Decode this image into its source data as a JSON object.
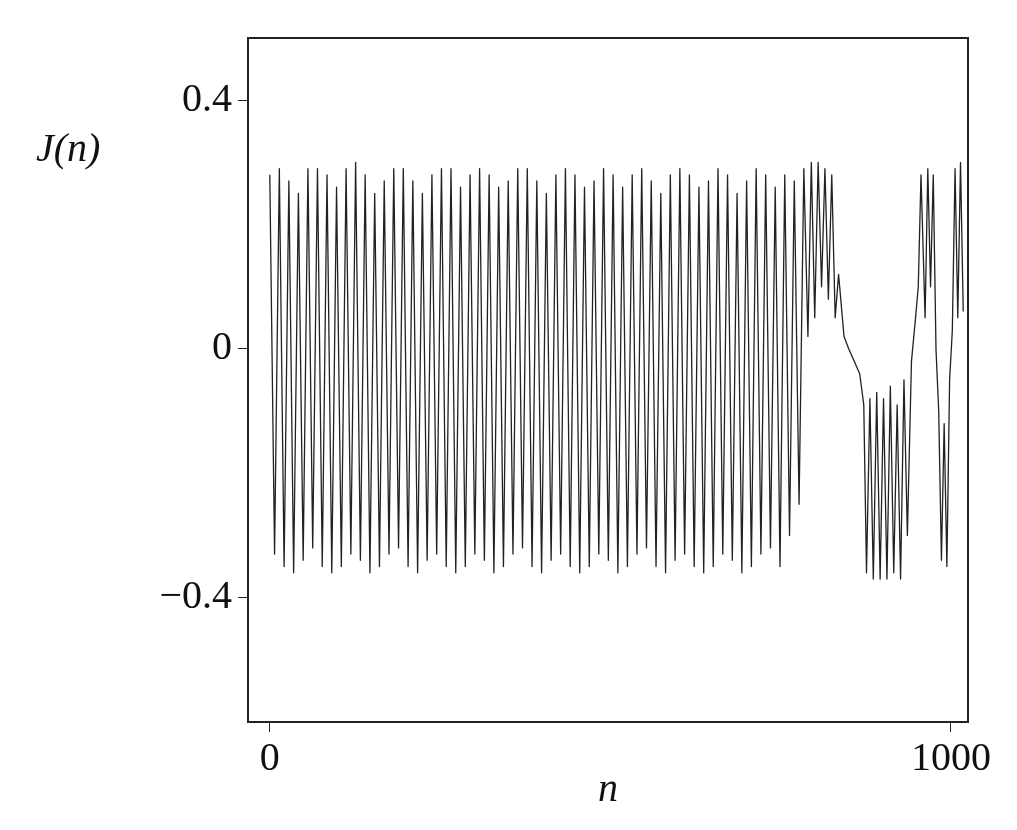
{
  "chart_data": {
    "type": "line",
    "xlabel": "n",
    "ylabel": "J(n)",
    "xlim": [
      -32,
      1025
    ],
    "ylim": [
      -0.6,
      0.5
    ],
    "xticks": [
      0,
      1000
    ],
    "yticks": [
      -0.4,
      0,
      0.4
    ],
    "grid": false,
    "legend": false,
    "marker": "none",
    "line_style": "solid",
    "series": [
      {
        "color": "#222222",
        "x": [
          0,
          7,
          14,
          21,
          28,
          35,
          42,
          49,
          56,
          63,
          70,
          77,
          84,
          91,
          98,
          105,
          112,
          119,
          126,
          133,
          140,
          147,
          154,
          161,
          168,
          175,
          182,
          189,
          196,
          203,
          210,
          217,
          224,
          231,
          238,
          245,
          252,
          259,
          266,
          273,
          280,
          287,
          294,
          301,
          308,
          315,
          322,
          329,
          336,
          343,
          350,
          357,
          364,
          371,
          378,
          385,
          392,
          399,
          406,
          413,
          420,
          427,
          434,
          441,
          448,
          455,
          462,
          469,
          476,
          483,
          490,
          497,
          504,
          511,
          518,
          525,
          532,
          539,
          546,
          553,
          560,
          567,
          574,
          581,
          588,
          595,
          602,
          609,
          616,
          623,
          630,
          637,
          644,
          651,
          658,
          665,
          672,
          679,
          686,
          693,
          700,
          707,
          714,
          721,
          728,
          735,
          742,
          749,
          756,
          763,
          770,
          777,
          784,
          790,
          795,
          800,
          805,
          810,
          815,
          820,
          825,
          830,
          835,
          843,
          850,
          858,
          866,
          872,
          876,
          881,
          886,
          891,
          896,
          901,
          906,
          911,
          916,
          921,
          926,
          931,
          936,
          942,
          948,
          952,
          956,
          962,
          966,
          970,
          974,
          978,
          982,
          986,
          990,
          994,
          998,
          1002,
          1006,
          1010,
          1014,
          1018
        ],
        "values": [
          0.28,
          -0.33,
          0.29,
          -0.35,
          0.27,
          -0.36,
          0.25,
          -0.34,
          0.29,
          -0.32,
          0.29,
          -0.35,
          0.28,
          -0.36,
          0.26,
          -0.35,
          0.29,
          -0.33,
          0.3,
          -0.34,
          0.28,
          -0.36,
          0.25,
          -0.35,
          0.27,
          -0.33,
          0.29,
          -0.32,
          0.29,
          -0.35,
          0.27,
          -0.36,
          0.25,
          -0.34,
          0.28,
          -0.33,
          0.29,
          -0.35,
          0.29,
          -0.36,
          0.26,
          -0.35,
          0.28,
          -0.33,
          0.29,
          -0.34,
          0.28,
          -0.36,
          0.26,
          -0.35,
          0.27,
          -0.33,
          0.29,
          -0.32,
          0.29,
          -0.35,
          0.27,
          -0.36,
          0.25,
          -0.34,
          0.28,
          -0.33,
          0.29,
          -0.35,
          0.28,
          -0.36,
          0.26,
          -0.35,
          0.27,
          -0.33,
          0.29,
          -0.34,
          0.28,
          -0.36,
          0.26,
          -0.35,
          0.28,
          -0.33,
          0.29,
          -0.32,
          0.27,
          -0.35,
          0.25,
          -0.36,
          0.28,
          -0.34,
          0.29,
          -0.33,
          0.28,
          -0.35,
          0.26,
          -0.36,
          0.27,
          -0.35,
          0.29,
          -0.33,
          0.28,
          -0.34,
          0.25,
          -0.36,
          0.27,
          -0.35,
          0.29,
          -0.33,
          0.28,
          -0.32,
          0.26,
          -0.35,
          0.28,
          -0.3,
          0.27,
          -0.25,
          0.29,
          0.02,
          0.3,
          0.05,
          0.3,
          0.1,
          0.29,
          0.08,
          0.28,
          0.05,
          0.12,
          0.02,
          0.0,
          -0.02,
          -0.04,
          -0.09,
          -0.36,
          -0.08,
          -0.37,
          -0.07,
          -0.37,
          -0.08,
          -0.37,
          -0.06,
          -0.36,
          -0.09,
          -0.37,
          -0.05,
          -0.3,
          -0.02,
          0.05,
          0.1,
          0.28,
          0.05,
          0.29,
          0.1,
          0.28,
          0.0,
          -0.1,
          -0.34,
          -0.12,
          -0.35,
          -0.05,
          0.03,
          0.29,
          0.05,
          0.3,
          0.06
        ]
      }
    ]
  }
}
